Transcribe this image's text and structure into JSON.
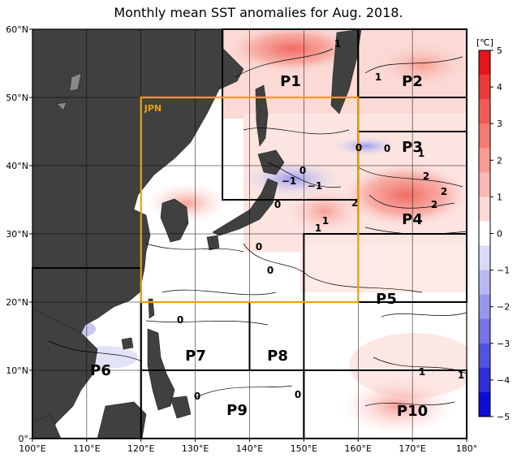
{
  "title": "Monthly mean SST anomalies for Aug. 2018.",
  "lat_labels": [
    "60°N",
    "50°N",
    "40°N",
    "30°N",
    "20°N",
    "10°N",
    "0°"
  ],
  "lon_labels": [
    "100°E",
    "110°E",
    "120°E",
    "130°E",
    "140°E",
    "150°E",
    "160°E",
    "170°E",
    "180°"
  ],
  "colorbar": {
    "unit": "[℃]",
    "ticks": [
      "5",
      "4",
      "3",
      "2",
      "1",
      "0",
      "−1",
      "−2",
      "−3",
      "−4",
      "−5"
    ],
    "colors": [
      "#e8141e",
      "#ee3a3a",
      "#f25a55",
      "#f57b72",
      "#f79b92",
      "#f9bab3",
      "#fbd9d5",
      "#ffffff",
      "#dadaf7",
      "#b9b9f1",
      "#9696ec",
      "#7474e6",
      "#5252df",
      "#2f2fd9",
      "#0d0dd3"
    ]
  },
  "regions": [
    {
      "name": "P1",
      "lon": [
        135,
        160
      ],
      "lat": [
        35,
        60
      ]
    },
    {
      "name": "P2",
      "lon": [
        160,
        180
      ],
      "lat": [
        50,
        60
      ]
    },
    {
      "name": "P3",
      "lon": [
        160,
        180
      ],
      "lat": [
        45,
        50
      ]
    },
    {
      "name": "P4",
      "lon": [
        160,
        180
      ],
      "lat": [
        30,
        45
      ]
    },
    {
      "name": "P5",
      "lon": [
        150,
        180
      ],
      "lat": [
        20,
        30
      ]
    },
    {
      "name": "P6",
      "lon": [
        100,
        120
      ],
      "lat": [
        0,
        25
      ]
    },
    {
      "name": "P7",
      "lon": [
        120,
        140
      ],
      "lat": [
        10,
        20
      ]
    },
    {
      "name": "P8",
      "lon": [
        140,
        150
      ],
      "lat": [
        10,
        20
      ]
    },
    {
      "name": "P9",
      "lon": [
        120,
        150
      ],
      "lat": [
        0,
        10
      ]
    },
    {
      "name": "P10",
      "lon": [
        150,
        180
      ],
      "lat": [
        0,
        10
      ]
    }
  ],
  "jpn_box": {
    "name": "JPN",
    "lon": [
      120,
      160
    ],
    "lat": [
      20,
      50
    ],
    "color": "#f0a000"
  },
  "contour_labels": [
    "1",
    "1",
    "0",
    "0",
    "1",
    "−1",
    "0",
    "−1",
    "1",
    "2",
    "2",
    "0",
    "1",
    "2",
    "2",
    "0",
    "0",
    "0",
    "1",
    "1",
    "0",
    "0"
  ],
  "colors": {
    "land": "#404040",
    "grid": "#000000",
    "frame": "#000000"
  }
}
